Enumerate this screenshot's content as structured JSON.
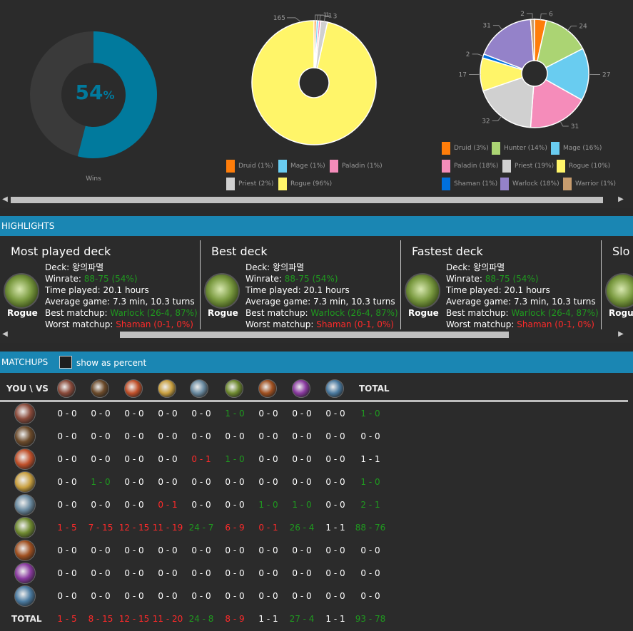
{
  "stats": {
    "winrate_number": "54",
    "winrate_percent_sign": "%",
    "winrate_fraction": 0.54,
    "wins_label": "Wins",
    "accent_color": "#017a9d",
    "track_color": "#3a3a3a"
  },
  "chart_data": [
    {
      "type": "pie",
      "title": "",
      "slices": [
        {
          "name": "Druid",
          "value": 1,
          "color": "#ff7d0a"
        },
        {
          "name": "Mage",
          "value": 1,
          "color": "#69ccf0"
        },
        {
          "name": "Paladin",
          "value": 1,
          "color": "#f58cba"
        },
        {
          "name": "Priest",
          "value": 3,
          "color": "#d0d0d0"
        },
        {
          "name": "Rogue",
          "value": 165,
          "color": "#fff569"
        }
      ],
      "slice_labels": [
        "165",
        "1",
        "2",
        "3"
      ],
      "legend": [
        {
          "label": "Druid (1%)",
          "color": "#ff7d0a"
        },
        {
          "label": "Mage (1%)",
          "color": "#69ccf0"
        },
        {
          "label": "Paladin (1%)",
          "color": "#f58cba"
        },
        {
          "label": "Priest (2%)",
          "color": "#d0d0d0"
        },
        {
          "label": "Rogue (96%)",
          "color": "#fff569"
        }
      ]
    },
    {
      "type": "pie",
      "title": "",
      "slices": [
        {
          "name": "Druid",
          "value": 6,
          "color": "#ff7d0a"
        },
        {
          "name": "Hunter",
          "value": 24,
          "color": "#abd473"
        },
        {
          "name": "Mage",
          "value": 27,
          "color": "#69ccf0"
        },
        {
          "name": "Paladin",
          "value": 31,
          "color": "#f58cba"
        },
        {
          "name": "Priest",
          "value": 32,
          "color": "#d0d0d0"
        },
        {
          "name": "Rogue",
          "value": 17,
          "color": "#fff569"
        },
        {
          "name": "Shaman",
          "value": 2,
          "color": "#0070de"
        },
        {
          "name": "Warlock",
          "value": 31,
          "color": "#9482c9"
        },
        {
          "name": "Warrior",
          "value": 2,
          "color": "#c79c6e"
        }
      ],
      "legend": [
        {
          "label": "Druid (3%)",
          "color": "#ff7d0a"
        },
        {
          "label": "Hunter (14%)",
          "color": "#abd473"
        },
        {
          "label": "Mage (16%)",
          "color": "#69ccf0"
        },
        {
          "label": "Paladin (18%)",
          "color": "#f58cba"
        },
        {
          "label": "Priest (19%)",
          "color": "#d0d0d0"
        },
        {
          "label": "Rogue (10%)",
          "color": "#fff569"
        },
        {
          "label": "Shaman (1%)",
          "color": "#0070de"
        },
        {
          "label": "Warlock (18%)",
          "color": "#9482c9"
        },
        {
          "label": "Warrior (1%)",
          "color": "#c79c6e"
        }
      ]
    }
  ],
  "highlights": {
    "title": "HIGHLIGHTS",
    "cards": [
      {
        "heading": "Most played deck",
        "class_label": "Rogue",
        "deck_prefix": "Deck: ",
        "deck_name": "왕의파멸",
        "winrate_prefix": "Winrate: ",
        "winrate": "88-75 (54%)",
        "time": "Time played: 20.1 hours",
        "avg": "Average game: 7.3 min, 10.3 turns",
        "best_prefix": "Best matchup: ",
        "best": "Warlock (26-4, 87%)",
        "worst_prefix": "Worst matchup: ",
        "worst": "Shaman (0-1, 0%)"
      },
      {
        "heading": "Best deck",
        "class_label": "Rogue",
        "deck_prefix": "Deck: ",
        "deck_name": "왕의파멸",
        "winrate_prefix": "Winrate: ",
        "winrate": "88-75 (54%)",
        "time": "Time played: 20.1 hours",
        "avg": "Average game: 7.3 min, 10.3 turns",
        "best_prefix": "Best matchup: ",
        "best": "Warlock (26-4, 87%)",
        "worst_prefix": "Worst matchup: ",
        "worst": "Shaman (0-1, 0%)"
      },
      {
        "heading": "Fastest deck",
        "class_label": "Rogue",
        "deck_prefix": "Deck: ",
        "deck_name": "왕의파멸",
        "winrate_prefix": "Winrate: ",
        "winrate": "88-75 (54%)",
        "time": "Time played: 20.1 hours",
        "avg": "Average game: 7.3 min, 10.3 turns",
        "best_prefix": "Best matchup: ",
        "best": "Warlock (26-4, 87%)",
        "worst_prefix": "Worst matchup: ",
        "worst": "Shaman (0-1, 0%)"
      },
      {
        "heading": "Slo",
        "class_label": "Rogu"
      }
    ]
  },
  "matchups": {
    "title": "MATCHUPS",
    "show_percent_label": "show as percent",
    "corner_label": "YOU \\ VS",
    "total_label": "TOTAL",
    "classes": [
      "Druid",
      "Hunter",
      "Mage",
      "Paladin",
      "Priest",
      "Rogue",
      "Shaman",
      "Warlock",
      "Warrior"
    ],
    "class_colors": [
      "#8a4a3a",
      "#6b4a2a",
      "#c0502a",
      "#c9a040",
      "#6a8aa0",
      "#6f8a30",
      "#a05020",
      "#8a3aa0",
      "#4a7aa0"
    ],
    "rows": [
      [
        "0 - 0",
        "0 - 0",
        "0 - 0",
        "0 - 0",
        "0 - 0",
        "1 - 0",
        "0 - 0",
        "0 - 0",
        "0 - 0",
        "1 - 0"
      ],
      [
        "0 - 0",
        "0 - 0",
        "0 - 0",
        "0 - 0",
        "0 - 0",
        "0 - 0",
        "0 - 0",
        "0 - 0",
        "0 - 0",
        "0 - 0"
      ],
      [
        "0 - 0",
        "0 - 0",
        "0 - 0",
        "0 - 0",
        "0 - 1",
        "1 - 0",
        "0 - 0",
        "0 - 0",
        "0 - 0",
        "1 - 1"
      ],
      [
        "0 - 0",
        "1 - 0",
        "0 - 0",
        "0 - 0",
        "0 - 0",
        "0 - 0",
        "0 - 0",
        "0 - 0",
        "0 - 0",
        "1 - 0"
      ],
      [
        "0 - 0",
        "0 - 0",
        "0 - 0",
        "0 - 1",
        "0 - 0",
        "0 - 0",
        "1 - 0",
        "1 - 0",
        "0 - 0",
        "2 - 1"
      ],
      [
        "1 - 5",
        "7 - 15",
        "12 - 15",
        "11 - 19",
        "24 - 7",
        "6 - 9",
        "0 - 1",
        "26 - 4",
        "1 - 1",
        "88 - 76"
      ],
      [
        "0 - 0",
        "0 - 0",
        "0 - 0",
        "0 - 0",
        "0 - 0",
        "0 - 0",
        "0 - 0",
        "0 - 0",
        "0 - 0",
        "0 - 0"
      ],
      [
        "0 - 0",
        "0 - 0",
        "0 - 0",
        "0 - 0",
        "0 - 0",
        "0 - 0",
        "0 - 0",
        "0 - 0",
        "0 - 0",
        "0 - 0"
      ],
      [
        "0 - 0",
        "0 - 0",
        "0 - 0",
        "0 - 0",
        "0 - 0",
        "0 - 0",
        "0 - 0",
        "0 - 0",
        "0 - 0",
        "0 - 0"
      ]
    ],
    "totals": [
      "1 - 5",
      "8 - 15",
      "12 - 15",
      "11 - 20",
      "24 - 8",
      "8 - 9",
      "1 - 1",
      "27 - 4",
      "1 - 1",
      "93 - 78"
    ],
    "colors": {
      "win": "#1f9a1f",
      "loss": "#ff2a2a",
      "neutral": "#ffffff"
    }
  }
}
